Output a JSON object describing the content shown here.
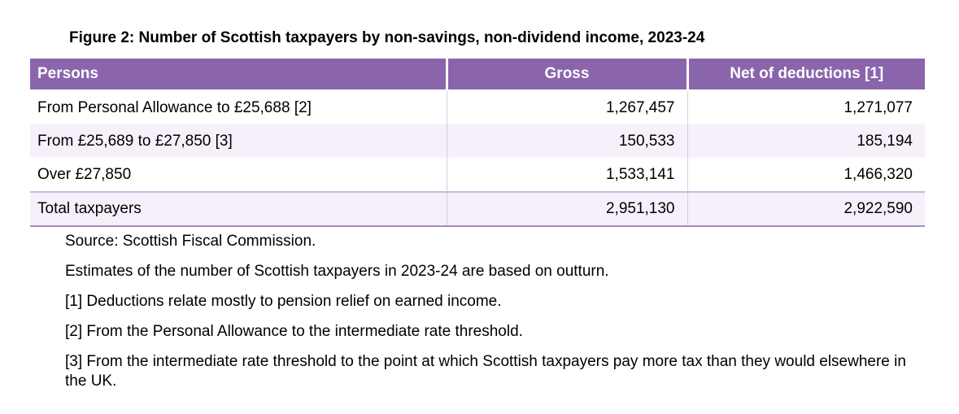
{
  "figure": {
    "title": "Figure 2: Number of Scottish taxpayers by non-savings, non-dividend income, 2023-24"
  },
  "table": {
    "columns": [
      "Persons",
      "Gross",
      "Net of deductions [1]"
    ],
    "rows": [
      {
        "label": "From Personal Allowance to £25,688 [2]",
        "gross": "1,267,457",
        "net": "1,271,077"
      },
      {
        "label": "From £25,689 to £27,850 [3]",
        "gross": "150,533",
        "net": "185,194"
      },
      {
        "label": "Over £27,850",
        "gross": "1,533,141",
        "net": "1,466,320"
      }
    ],
    "total": {
      "label": "Total taxpayers",
      "gross": "2,951,130",
      "net": "2,922,590"
    }
  },
  "notes": [
    "Source: Scottish Fiscal Commission.",
    "Estimates of the number of Scottish taxpayers in 2023-24 are based on outturn.",
    "[1] Deductions relate mostly to pension relief on earned income.",
    "[2] From the Personal Allowance to the intermediate rate threshold.",
    "[3] From the intermediate rate threshold to the point at which Scottish taxpayers pay more tax than they would elsewhere in the UK."
  ],
  "colors": {
    "header_bg": "#8a65ac",
    "header_text": "#ffffff",
    "alt_row_bg": "#f6f0fb",
    "total_top_border": "#cbb8dd",
    "table_bottom_border": "#a68cc0",
    "cell_divider": "#d5cede"
  }
}
